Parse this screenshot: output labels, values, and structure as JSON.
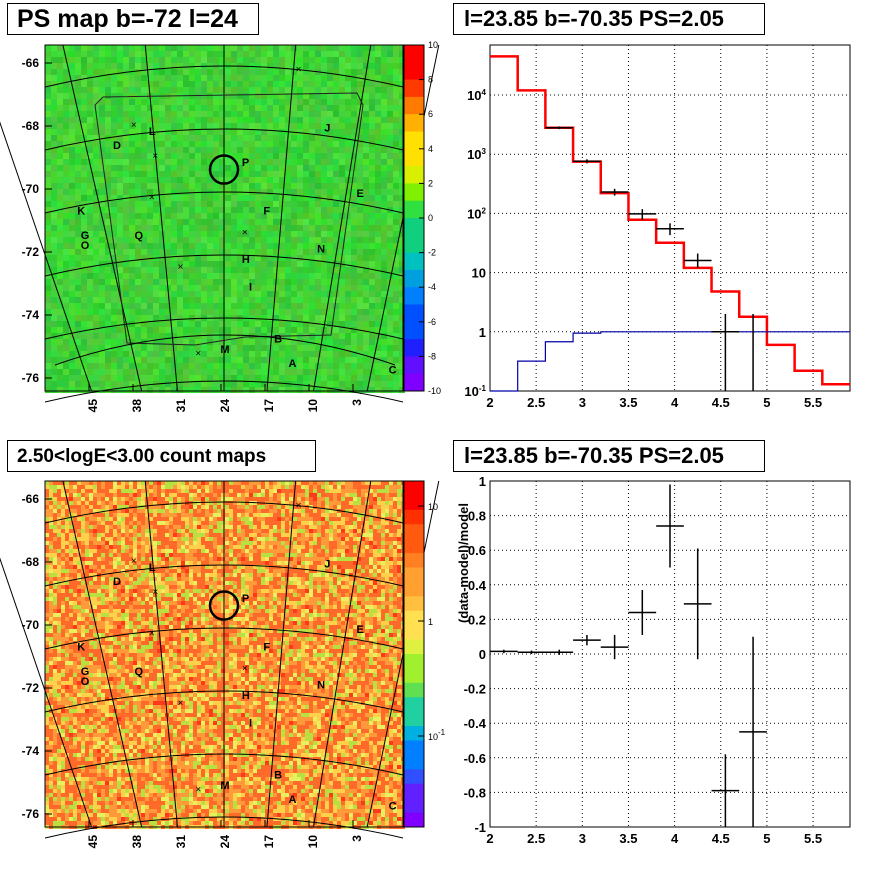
{
  "titles": {
    "tl": "PS map b=-72 l=24",
    "tr": "l=23.85 b=-70.35 PS=2.05",
    "bl": "2.50<logE<3.00 count maps",
    "br": "l=23.85 b=-70.35 PS=2.05"
  },
  "map_common": {
    "y_ticks": [
      "-66",
      "-68",
      "-70",
      "-72",
      "-74",
      "-76"
    ],
    "x_ticks": [
      "45",
      "38",
      "31",
      "24",
      "17",
      "10",
      "3"
    ],
    "sources": [
      {
        "label": "L",
        "nx": 0.29,
        "ny": 0.26
      },
      {
        "label": "D",
        "nx": 0.19,
        "ny": 0.3
      },
      {
        "label": "J",
        "nx": 0.78,
        "ny": 0.25
      },
      {
        "label": "P",
        "nx": 0.55,
        "ny": 0.35
      },
      {
        "label": "E",
        "nx": 0.87,
        "ny": 0.44
      },
      {
        "label": "K",
        "nx": 0.09,
        "ny": 0.49
      },
      {
        "label": "F",
        "nx": 0.61,
        "ny": 0.49
      },
      {
        "label": "G",
        "nx": 0.1,
        "ny": 0.56
      },
      {
        "label": "O",
        "nx": 0.1,
        "ny": 0.59
      },
      {
        "label": "Q",
        "nx": 0.25,
        "ny": 0.56
      },
      {
        "label": "N",
        "nx": 0.76,
        "ny": 0.6
      },
      {
        "label": "H",
        "nx": 0.55,
        "ny": 0.63
      },
      {
        "label": "I",
        "nx": 0.57,
        "ny": 0.71
      },
      {
        "label": "M",
        "nx": 0.49,
        "ny": 0.89
      },
      {
        "label": "B",
        "nx": 0.64,
        "ny": 0.86
      },
      {
        "label": "A",
        "nx": 0.68,
        "ny": 0.93
      },
      {
        "label": "C",
        "nx": 0.96,
        "ny": 0.95
      }
    ]
  },
  "ps_map_palette": [
    "10",
    "8",
    "6",
    "4",
    "2",
    "0",
    "-2",
    "-4",
    "-6",
    "-8",
    "-10"
  ],
  "count_map_palette": [
    "10",
    "1",
    "10-1"
  ],
  "chart_data": [
    {
      "type": "heatmap",
      "title": "PS map b=-72 l=24",
      "z_range": [
        -10,
        10
      ],
      "y_ticks": [
        -66,
        -68,
        -70,
        -72,
        -74,
        -76
      ],
      "x_ticks": [
        45,
        38,
        31,
        24,
        17,
        10,
        3
      ]
    },
    {
      "type": "line",
      "title": "l=23.85 b=-70.35 PS=2.05",
      "xlim": [
        2,
        5.9
      ],
      "ylim_log": [
        0.1,
        70000
      ],
      "y_scale": "log",
      "x_ticks": [
        "2",
        "2.5",
        "3",
        "3.5",
        "4",
        "4.5",
        "5",
        "5.5"
      ],
      "y_ticks": [
        "10-1",
        "1",
        "10",
        "102",
        "103",
        "104"
      ],
      "series": [
        {
          "color": "#ff0000",
          "edges": [
            2.0,
            2.3,
            2.6,
            2.9,
            3.2,
            3.5,
            3.8,
            4.1,
            4.4,
            4.7,
            5.0,
            5.3,
            5.6,
            5.9
          ],
          "values": [
            45000,
            12000,
            2800,
            750,
            220,
            78,
            32,
            12,
            4.8,
            1.8,
            0.6,
            0.22,
            0.13
          ]
        },
        {
          "color": "#0000aa",
          "edges": [
            2.0,
            2.3,
            2.6,
            2.9,
            3.2,
            3.5,
            3.8,
            4.1,
            4.4,
            4.7,
            5.0,
            5.3,
            5.6,
            5.9
          ],
          "values": [
            0.03,
            0.32,
            0.68,
            0.95,
            1.0,
            1.0,
            1.0,
            1.0,
            1.0,
            1.0,
            1.0,
            1.0,
            1.0
          ]
        },
        {
          "color": "#000000",
          "points": [
            {
              "x": 2.75,
              "y": 2800,
              "xerr": 0.15,
              "lo": 2650,
              "hi": 2950
            },
            {
              "x": 3.05,
              "y": 760,
              "xerr": 0.15,
              "lo": 700,
              "hi": 820
            },
            {
              "x": 3.35,
              "y": 230,
              "xerr": 0.15,
              "lo": 200,
              "hi": 260
            },
            {
              "x": 3.65,
              "y": 98,
              "xerr": 0.15,
              "lo": 78,
              "hi": 118
            },
            {
              "x": 3.95,
              "y": 55,
              "xerr": 0.15,
              "lo": 43,
              "hi": 68
            },
            {
              "x": 4.25,
              "y": 16,
              "xerr": 0.15,
              "lo": 12,
              "hi": 21
            },
            {
              "x": 4.55,
              "y": 1.0,
              "xerr": 0.15,
              "lo": 0.05,
              "hi": 2.0
            },
            {
              "x": 4.85,
              "y": 1.0,
              "xerr": 0.0,
              "lo": 0.05,
              "hi": 2.0
            }
          ]
        }
      ]
    },
    {
      "type": "heatmap",
      "title": "2.50<logE<3.00 count maps",
      "z_scale": "log",
      "z_ticks": [
        "10",
        "1",
        "10-1"
      ]
    },
    {
      "type": "scatter",
      "title": "l=23.85 b=-70.35 PS=2.05",
      "ylabel": "(data-model)/model",
      "xlim": [
        2,
        5.9
      ],
      "ylim": [
        -1,
        1
      ],
      "x_ticks": [
        "2",
        "2.5",
        "3",
        "3.5",
        "4",
        "4.5",
        "5",
        "5.5"
      ],
      "y_ticks": [
        "1",
        "0.8",
        "0.6",
        "0.4",
        "0.2",
        "0",
        "-0.2",
        "-0.4",
        "-0.6",
        "-0.8",
        "-1"
      ],
      "points": [
        {
          "x": 2.15,
          "y": 0.015,
          "xerr": 0.15,
          "yerr": 0.01
        },
        {
          "x": 2.45,
          "y": 0.01,
          "xerr": 0.15,
          "yerr": 0.01
        },
        {
          "x": 2.75,
          "y": 0.01,
          "xerr": 0.15,
          "yerr": 0.015
        },
        {
          "x": 3.05,
          "y": 0.08,
          "xerr": 0.15,
          "yerr": 0.03
        },
        {
          "x": 3.35,
          "y": 0.04,
          "xerr": 0.15,
          "yerr": 0.07
        },
        {
          "x": 3.65,
          "y": 0.24,
          "xerr": 0.15,
          "yerr": 0.13
        },
        {
          "x": 3.95,
          "y": 0.74,
          "xerr": 0.15,
          "yerr": 0.24
        },
        {
          "x": 4.25,
          "y": 0.29,
          "xerr": 0.15,
          "yerr": 0.32
        },
        {
          "x": 4.55,
          "y": -0.79,
          "xerr": 0.15,
          "yerr": 0.21
        },
        {
          "x": 4.85,
          "y": -0.45,
          "xerr": 0.15,
          "yerr": 0.55
        }
      ]
    }
  ]
}
